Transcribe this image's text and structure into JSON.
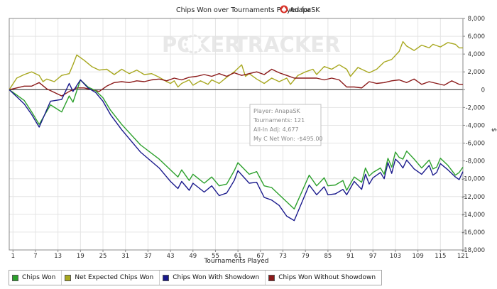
{
  "title": "Chips Won over Tournaments Played for",
  "player_name": "AnapaSK",
  "watermark": {
    "left": "POKER",
    "right": "TRACKER"
  },
  "tooltip": {
    "player": "Player: AnapaSK",
    "tournaments": "Tournaments: 121",
    "allin": "All-In Adj: 4,677",
    "mycnet": "My C Net Won: -$495.00"
  },
  "chart_data": {
    "type": "line",
    "title": "Chips Won over Tournaments Played for AnapaSK",
    "xlabel": "Tournaments Played",
    "ylabel": "$",
    "xlim": [
      0,
      121
    ],
    "ylim": [
      -18000,
      8000
    ],
    "yticks": [
      -18000,
      -16000,
      -14000,
      -12000,
      -10000,
      -8000,
      -6000,
      -4000,
      -2000,
      0,
      2000,
      4000,
      6000,
      8000
    ],
    "ytick_labels": [
      "-18,000",
      "-16,000",
      "-14,000",
      "-12,000",
      "-10,000",
      "-8,000",
      "-6,000",
      "-4,000",
      "-2,000",
      "0",
      "2,000",
      "4,000",
      "6,000",
      "8,000"
    ],
    "xticks": [
      1,
      7,
      13,
      19,
      25,
      31,
      37,
      43,
      49,
      55,
      61,
      67,
      73,
      79,
      85,
      91,
      97,
      103,
      109,
      115,
      121
    ],
    "grid": true,
    "legend_position": "bottom",
    "series": [
      {
        "name": "Chips Won",
        "color": "#2ca02c",
        "points": [
          [
            0,
            0
          ],
          [
            2,
            -600
          ],
          [
            4,
            -1200
          ],
          [
            6,
            -2500
          ],
          [
            8,
            -3900
          ],
          [
            11,
            -1700
          ],
          [
            14,
            -2500
          ],
          [
            16,
            -700
          ],
          [
            17,
            -1400
          ],
          [
            19,
            1100
          ],
          [
            21,
            300
          ],
          [
            23,
            -100
          ],
          [
            25,
            -900
          ],
          [
            27,
            -2300
          ],
          [
            30,
            -3900
          ],
          [
            35,
            -6200
          ],
          [
            40,
            -7800
          ],
          [
            43,
            -9000
          ],
          [
            45,
            -9800
          ],
          [
            46,
            -9000
          ],
          [
            48,
            -10200
          ],
          [
            49,
            -9500
          ],
          [
            52,
            -10500
          ],
          [
            54,
            -9800
          ],
          [
            56,
            -10800
          ],
          [
            58,
            -10600
          ],
          [
            60,
            -9100
          ],
          [
            61,
            -8200
          ],
          [
            64,
            -9500
          ],
          [
            66,
            -9200
          ],
          [
            68,
            -10800
          ],
          [
            70,
            -11000
          ],
          [
            72,
            -11800
          ],
          [
            74,
            -12600
          ],
          [
            76,
            -13400
          ],
          [
            80,
            -9600
          ],
          [
            82,
            -10800
          ],
          [
            84,
            -9900
          ],
          [
            85,
            -10800
          ],
          [
            87,
            -10700
          ],
          [
            89,
            -10200
          ],
          [
            90,
            -11300
          ],
          [
            92,
            -9800
          ],
          [
            94,
            -10400
          ],
          [
            95,
            -8800
          ],
          [
            96,
            -9700
          ],
          [
            97,
            -9300
          ],
          [
            99,
            -8800
          ],
          [
            100,
            -9500
          ],
          [
            101,
            -7700
          ],
          [
            102,
            -8700
          ],
          [
            103,
            -7000
          ],
          [
            104,
            -7600
          ],
          [
            105,
            -7800
          ],
          [
            106,
            -6900
          ],
          [
            108,
            -7800
          ],
          [
            110,
            -8800
          ],
          [
            112,
            -7900
          ],
          [
            113,
            -8900
          ],
          [
            114,
            -8700
          ],
          [
            115,
            -7700
          ],
          [
            117,
            -8500
          ],
          [
            119,
            -9600
          ],
          [
            120,
            -9300
          ],
          [
            121,
            -8700
          ]
        ]
      },
      {
        "name": "Net Expected Chips Won",
        "color": "#a8a820",
        "points": [
          [
            0,
            0
          ],
          [
            2,
            1300
          ],
          [
            4,
            1700
          ],
          [
            6,
            2000
          ],
          [
            8,
            1600
          ],
          [
            9,
            900
          ],
          [
            10,
            1200
          ],
          [
            12,
            900
          ],
          [
            14,
            1600
          ],
          [
            16,
            1800
          ],
          [
            17,
            2800
          ],
          [
            18,
            3900
          ],
          [
            20,
            3300
          ],
          [
            22,
            2600
          ],
          [
            24,
            2200
          ],
          [
            26,
            2300
          ],
          [
            28,
            1700
          ],
          [
            30,
            2300
          ],
          [
            32,
            1800
          ],
          [
            34,
            2200
          ],
          [
            36,
            1700
          ],
          [
            38,
            1800
          ],
          [
            40,
            1400
          ],
          [
            42,
            900
          ],
          [
            43,
            700
          ],
          [
            44,
            1000
          ],
          [
            45,
            300
          ],
          [
            46,
            700
          ],
          [
            48,
            1100
          ],
          [
            49,
            500
          ],
          [
            51,
            1000
          ],
          [
            53,
            600
          ],
          [
            54,
            1100
          ],
          [
            56,
            700
          ],
          [
            58,
            1400
          ],
          [
            60,
            2000
          ],
          [
            62,
            2800
          ],
          [
            63,
            1500
          ],
          [
            64,
            1800
          ],
          [
            66,
            1200
          ],
          [
            68,
            700
          ],
          [
            70,
            1300
          ],
          [
            72,
            900
          ],
          [
            74,
            1300
          ],
          [
            75,
            600
          ],
          [
            77,
            1600
          ],
          [
            79,
            2000
          ],
          [
            81,
            2300
          ],
          [
            82,
            1700
          ],
          [
            84,
            2600
          ],
          [
            86,
            2300
          ],
          [
            88,
            2800
          ],
          [
            90,
            2300
          ],
          [
            91,
            1500
          ],
          [
            93,
            2500
          ],
          [
            95,
            2100
          ],
          [
            96,
            1900
          ],
          [
            98,
            2300
          ],
          [
            100,
            3100
          ],
          [
            102,
            3400
          ],
          [
            104,
            4300
          ],
          [
            105,
            5400
          ],
          [
            106,
            4900
          ],
          [
            108,
            4400
          ],
          [
            110,
            5000
          ],
          [
            112,
            4700
          ],
          [
            113,
            5100
          ],
          [
            115,
            4800
          ],
          [
            117,
            5300
          ],
          [
            119,
            5100
          ],
          [
            120,
            4700
          ],
          [
            121,
            4700
          ]
        ]
      },
      {
        "name": "Chips Won With Showdown",
        "color": "#1a1a8c",
        "points": [
          [
            0,
            0
          ],
          [
            2,
            -800
          ],
          [
            4,
            -1600
          ],
          [
            6,
            -2800
          ],
          [
            8,
            -4200
          ],
          [
            11,
            -1300
          ],
          [
            14,
            -1100
          ],
          [
            16,
            700
          ],
          [
            17,
            -200
          ],
          [
            19,
            1100
          ],
          [
            21,
            200
          ],
          [
            23,
            -300
          ],
          [
            25,
            -1300
          ],
          [
            27,
            -2800
          ],
          [
            30,
            -4500
          ],
          [
            35,
            -7000
          ],
          [
            40,
            -8800
          ],
          [
            43,
            -10300
          ],
          [
            45,
            -11100
          ],
          [
            46,
            -10300
          ],
          [
            48,
            -11300
          ],
          [
            49,
            -10500
          ],
          [
            52,
            -11500
          ],
          [
            54,
            -10800
          ],
          [
            56,
            -11900
          ],
          [
            58,
            -11600
          ],
          [
            60,
            -10200
          ],
          [
            61,
            -9100
          ],
          [
            64,
            -10500
          ],
          [
            66,
            -10400
          ],
          [
            68,
            -12100
          ],
          [
            70,
            -12400
          ],
          [
            72,
            -13000
          ],
          [
            74,
            -14200
          ],
          [
            76,
            -14700
          ],
          [
            80,
            -10700
          ],
          [
            82,
            -11800
          ],
          [
            84,
            -10900
          ],
          [
            85,
            -11800
          ],
          [
            87,
            -11700
          ],
          [
            89,
            -11200
          ],
          [
            90,
            -11800
          ],
          [
            92,
            -10300
          ],
          [
            94,
            -11200
          ],
          [
            95,
            -9500
          ],
          [
            96,
            -10600
          ],
          [
            97,
            -9900
          ],
          [
            99,
            -9300
          ],
          [
            100,
            -10000
          ],
          [
            101,
            -8200
          ],
          [
            102,
            -9400
          ],
          [
            103,
            -7800
          ],
          [
            104,
            -8200
          ],
          [
            105,
            -8800
          ],
          [
            106,
            -7900
          ],
          [
            108,
            -8900
          ],
          [
            110,
            -9500
          ],
          [
            112,
            -8500
          ],
          [
            113,
            -9600
          ],
          [
            114,
            -9300
          ],
          [
            115,
            -8300
          ],
          [
            117,
            -9000
          ],
          [
            119,
            -9800
          ],
          [
            120,
            -10100
          ],
          [
            121,
            -9200
          ]
        ]
      },
      {
        "name": "Chips Won Without Showdown",
        "color": "#8b1a1a",
        "points": [
          [
            0,
            0
          ],
          [
            2,
            200
          ],
          [
            4,
            400
          ],
          [
            6,
            400
          ],
          [
            8,
            800
          ],
          [
            10,
            100
          ],
          [
            12,
            -300
          ],
          [
            14,
            -700
          ],
          [
            16,
            -200
          ],
          [
            18,
            200
          ],
          [
            20,
            200
          ],
          [
            22,
            0
          ],
          [
            24,
            -200
          ],
          [
            26,
            400
          ],
          [
            28,
            800
          ],
          [
            30,
            900
          ],
          [
            32,
            800
          ],
          [
            34,
            1000
          ],
          [
            36,
            900
          ],
          [
            38,
            1100
          ],
          [
            40,
            1200
          ],
          [
            42,
            1000
          ],
          [
            44,
            1300
          ],
          [
            46,
            1100
          ],
          [
            48,
            1400
          ],
          [
            50,
            1500
          ],
          [
            52,
            1700
          ],
          [
            54,
            1500
          ],
          [
            56,
            1800
          ],
          [
            58,
            1500
          ],
          [
            60,
            1900
          ],
          [
            62,
            1600
          ],
          [
            64,
            1800
          ],
          [
            66,
            2000
          ],
          [
            68,
            1700
          ],
          [
            70,
            2300
          ],
          [
            72,
            1900
          ],
          [
            74,
            1600
          ],
          [
            76,
            1300
          ],
          [
            78,
            1300
          ],
          [
            80,
            1300
          ],
          [
            82,
            1300
          ],
          [
            84,
            1100
          ],
          [
            86,
            1300
          ],
          [
            88,
            1100
          ],
          [
            90,
            300
          ],
          [
            92,
            300
          ],
          [
            94,
            200
          ],
          [
            96,
            900
          ],
          [
            98,
            700
          ],
          [
            100,
            800
          ],
          [
            102,
            1000
          ],
          [
            104,
            1100
          ],
          [
            106,
            800
          ],
          [
            108,
            1200
          ],
          [
            110,
            600
          ],
          [
            112,
            900
          ],
          [
            114,
            700
          ],
          [
            116,
            500
          ],
          [
            118,
            1000
          ],
          [
            120,
            600
          ],
          [
            121,
            600
          ]
        ]
      }
    ]
  }
}
